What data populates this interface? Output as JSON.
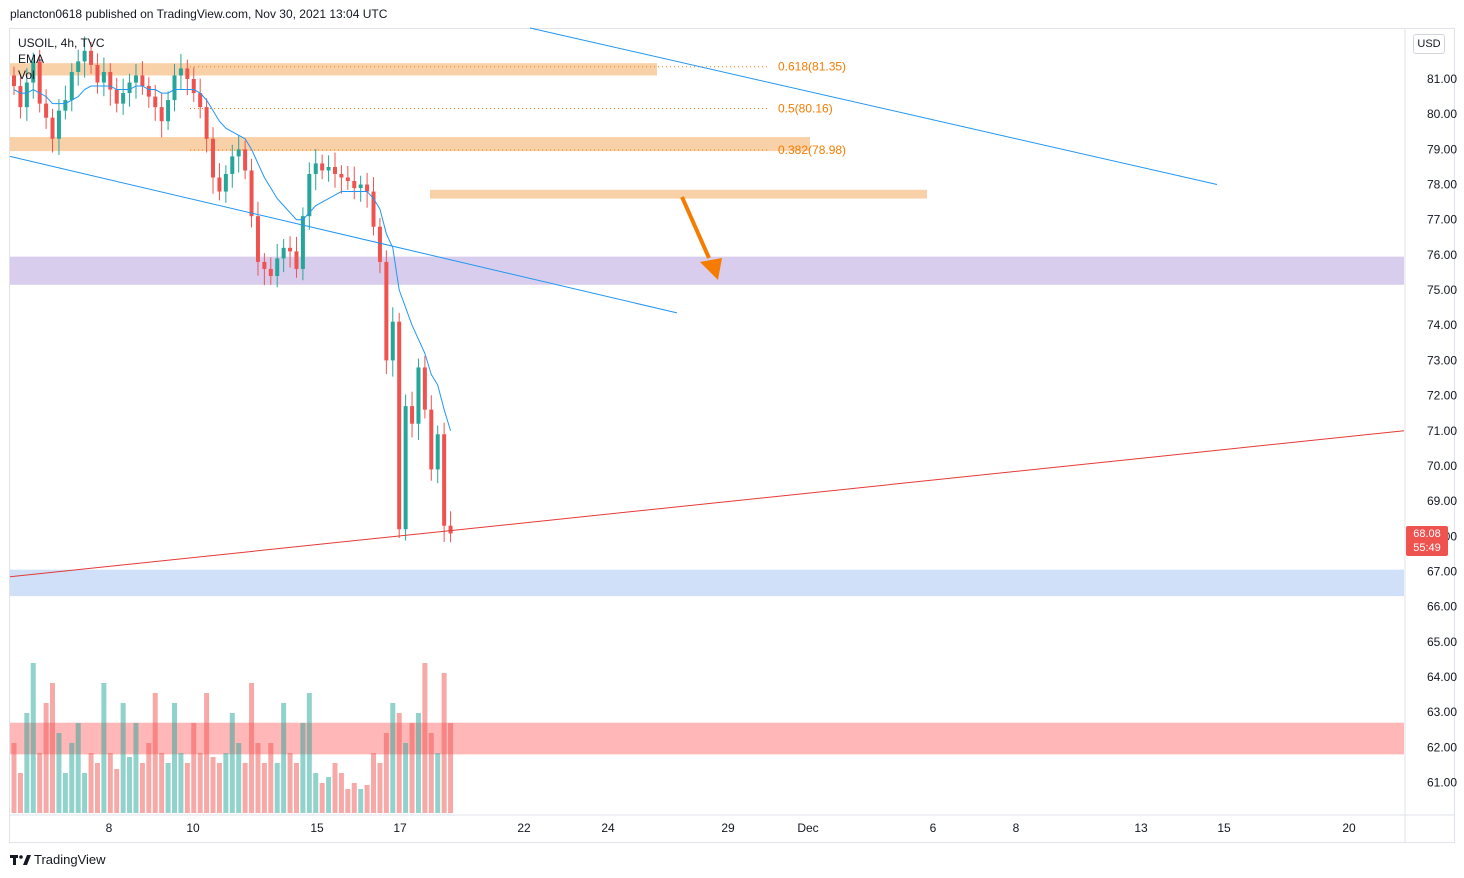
{
  "header": {
    "publisher_text": "plancton0618 published on TradingView.com, Nov 30, 2021 13:04 UTC"
  },
  "legend": {
    "symbol_line": "USOIL, 4h, TVC",
    "ema_label": "EMA",
    "vol_label": "Vol"
  },
  "currency_button": "USD",
  "last_price": {
    "price": "68.08",
    "countdown": "55:49"
  },
  "footer": {
    "brand": "TradingView"
  },
  "colors": {
    "up": "#26a69a",
    "down": "#ef5350",
    "ema": "#2196f3",
    "channel": "#2196f3",
    "support_line": "#e53935",
    "fib_zone": "#f8c99a",
    "fib_text": "#f57c00",
    "purple_zone": "#d1c4e9",
    "blue_zone": "#c7dbf7",
    "volume_zone": "#ffb3b3",
    "arrow": "#f57c00"
  },
  "chart_data": {
    "type": "candlestick",
    "symbol": "USOIL",
    "timeframe": "4h",
    "y_axis": {
      "ticks": [
        "81.00",
        "80.00",
        "79.00",
        "78.00",
        "77.00",
        "76.00",
        "75.00",
        "74.00",
        "73.00",
        "72.00",
        "71.00",
        "70.00",
        "69.00",
        "68.00",
        "67.00",
        "66.00",
        "65.00",
        "64.00",
        "63.00",
        "62.00",
        "61.00"
      ],
      "range": [
        60.2,
        82.2
      ]
    },
    "x_axis": {
      "ticks": [
        "8",
        "10",
        "15",
        "17",
        "22",
        "24",
        "29",
        "Dec",
        "6",
        "8",
        "13",
        "15",
        "20"
      ]
    },
    "fib_levels": [
      {
        "label": "0.618(81.35)",
        "value": 81.35
      },
      {
        "label": "0.5(80.16)",
        "value": 80.16
      },
      {
        "label": "0.382(78.98)",
        "value": 78.98
      }
    ],
    "zones": [
      {
        "name": "fib-zone-top",
        "low": 81.1,
        "high": 81.45
      },
      {
        "name": "fib-zone-mid",
        "low": 78.95,
        "high": 79.35
      },
      {
        "name": "fib-zone-low",
        "low": 77.6,
        "high": 77.85
      },
      {
        "name": "purple-zone",
        "low": 75.15,
        "high": 75.95
      },
      {
        "name": "blue-zone",
        "low": 66.3,
        "high": 67.05
      },
      {
        "name": "volume-zone",
        "low": 61.8,
        "high": 62.7
      }
    ],
    "closes": [
      80.8,
      80.2,
      80.9,
      81.5,
      80.3,
      79.9,
      79.3,
      80.1,
      80.4,
      81.2,
      81.5,
      81.8,
      81.4,
      80.9,
      81.2,
      80.7,
      80.3,
      80.6,
      80.9,
      81.1,
      80.8,
      80.5,
      80.2,
      79.8,
      80.4,
      81.1,
      81.3,
      81.0,
      80.6,
      80.2,
      79.3,
      78.2,
      77.8,
      78.3,
      78.8,
      79.0,
      78.4,
      77.1,
      75.8,
      75.6,
      75.4,
      75.9,
      76.2,
      76.1,
      75.6,
      77.1,
      78.3,
      78.6,
      78.4,
      78.5,
      78.3,
      78.2,
      78.1,
      77.9,
      78.0,
      77.8,
      76.8,
      75.8,
      73.0,
      74.1,
      68.2,
      71.7,
      71.2,
      72.8,
      71.6,
      69.9,
      70.9,
      68.3,
      68.08
    ],
    "ema": [
      80.7,
      80.6,
      80.6,
      80.7,
      80.6,
      80.5,
      80.3,
      80.3,
      80.3,
      80.4,
      80.5,
      80.7,
      80.8,
      80.8,
      80.8,
      80.8,
      80.7,
      80.7,
      80.7,
      80.8,
      80.8,
      80.7,
      80.7,
      80.6,
      80.6,
      80.7,
      80.7,
      80.7,
      80.7,
      80.6,
      80.4,
      80.1,
      79.8,
      79.6,
      79.5,
      79.4,
      79.3,
      79.0,
      78.6,
      78.2,
      77.9,
      77.6,
      77.4,
      77.2,
      77.0,
      77.0,
      77.2,
      77.4,
      77.5,
      77.6,
      77.7,
      77.8,
      77.8,
      77.8,
      77.8,
      77.8,
      77.6,
      77.3,
      76.6,
      76.2,
      75.0,
      74.5,
      74.0,
      73.6,
      73.2,
      72.6,
      72.3,
      71.6,
      71.0
    ],
    "volume": [
      0.35,
      0.2,
      0.5,
      0.75,
      0.3,
      0.55,
      0.65,
      0.4,
      0.2,
      0.35,
      0.45,
      0.2,
      0.3,
      0.25,
      0.65,
      0.3,
      0.22,
      0.55,
      0.28,
      0.45,
      0.25,
      0.35,
      0.6,
      0.3,
      0.25,
      0.55,
      0.3,
      0.25,
      0.45,
      0.3,
      0.6,
      0.28,
      0.25,
      0.3,
      0.5,
      0.35,
      0.25,
      0.65,
      0.35,
      0.25,
      0.35,
      0.25,
      0.55,
      0.3,
      0.25,
      0.45,
      0.6,
      0.2,
      0.15,
      0.18,
      0.25,
      0.2,
      0.12,
      0.15,
      0.12,
      0.14,
      0.3,
      0.25,
      0.4,
      0.55,
      0.5,
      0.35,
      0.45,
      0.5,
      0.75,
      0.4,
      0.3,
      0.7,
      0.45
    ],
    "channel_upper": {
      "start_value": 82.5,
      "end_value": 78.0
    },
    "channel_lower": {
      "start_value": 78.8,
      "end_value": 74.35
    },
    "support_line": {
      "start_value": 66.85,
      "end_value": 71.0
    }
  }
}
